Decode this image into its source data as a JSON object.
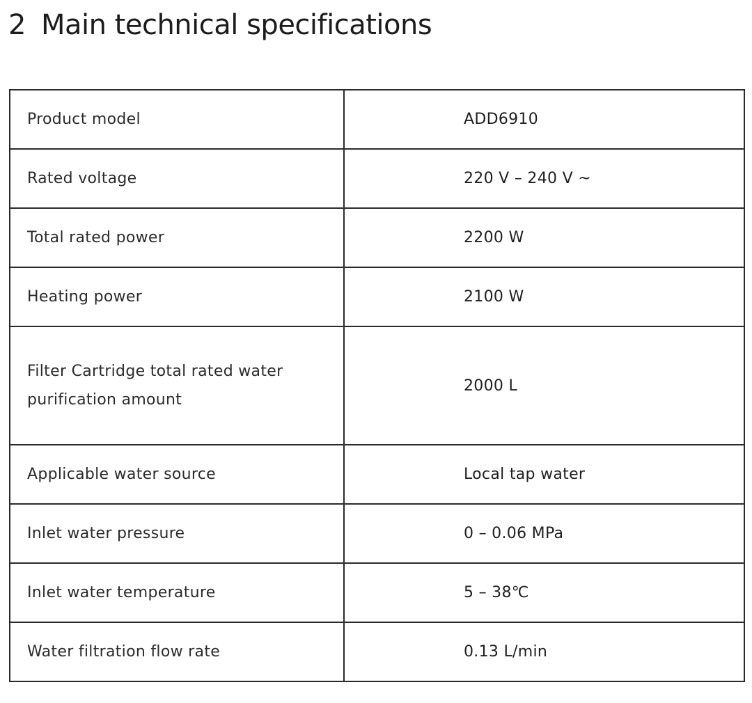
{
  "heading": {
    "number": "2",
    "title": "Main technical specifications"
  },
  "specs": [
    {
      "label": "Product model",
      "value": "ADD6910"
    },
    {
      "label": "Rated voltage",
      "value": "220 V – 240 V ~"
    },
    {
      "label": "Total rated power",
      "value": "2200 W"
    },
    {
      "label": "Heating power",
      "value": "2100 W"
    },
    {
      "label": "Filter Cartridge total rated water purification amount",
      "value": "2000 L"
    },
    {
      "label": "Applicable water source",
      "value": "Local tap water"
    },
    {
      "label": "Inlet water pressure",
      "value": "0 – 0.06 MPa"
    },
    {
      "label": "Inlet water temperature",
      "value": "5 – 38℃"
    },
    {
      "label": "Water filtration flow rate",
      "value": "0.13 L/min"
    }
  ]
}
